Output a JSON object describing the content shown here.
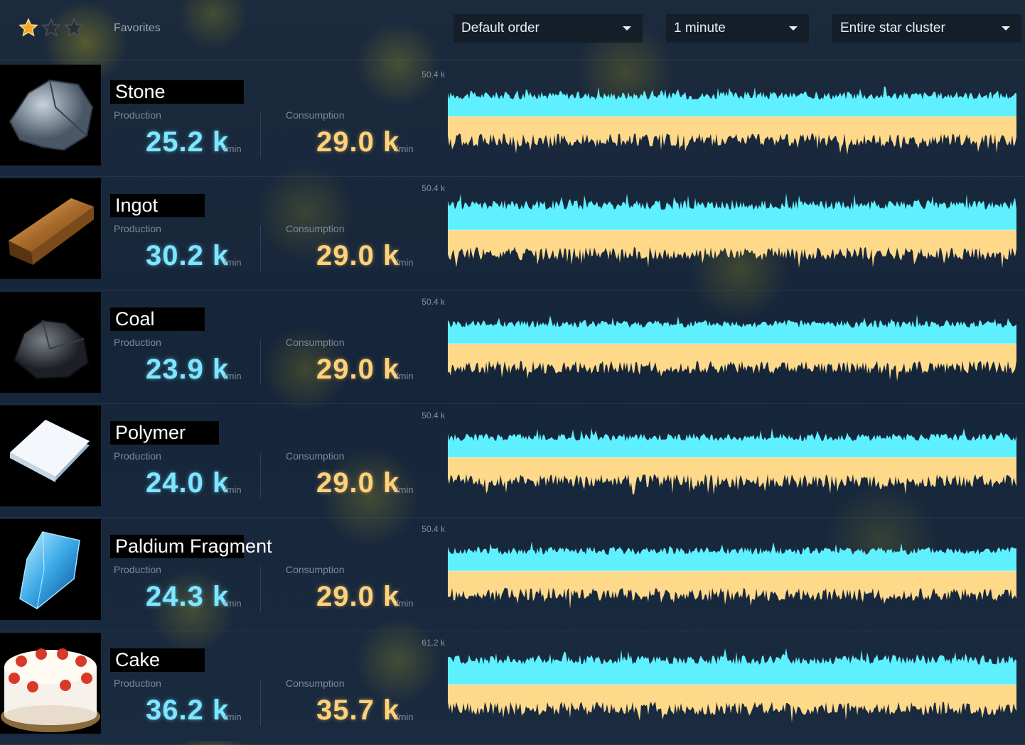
{
  "header": {
    "favorites_label": "Favorites",
    "stars": [
      {
        "icon": "star-filled-icon",
        "active": true
      },
      {
        "icon": "star-empty-icon",
        "active": false
      },
      {
        "icon": "star-empty-icon",
        "active": false
      }
    ],
    "sort_select": {
      "value": "Default order"
    },
    "time_select": {
      "value": "1 minute"
    },
    "scope_select": {
      "value": "Entire star cluster"
    }
  },
  "labels": {
    "production": "Production",
    "consumption": "Consumption",
    "unit": "/min"
  },
  "colors": {
    "production": "#5ff0ff",
    "consumption": "#ffd98a",
    "accent_star": "#f5a623"
  },
  "items": [
    {
      "name": "Stone",
      "icon": "stone-icon",
      "production": "25.2 k",
      "consumption": "29.0 k",
      "y_max": "50.4 k",
      "chart_data": {
        "type": "area",
        "ylim": [
          0,
          50.4
        ],
        "unit": "k",
        "production_level": 25.2,
        "consumption_level": 29.0
      }
    },
    {
      "name": "Ingot",
      "icon": "ingot-icon",
      "production": "30.2 k",
      "consumption": "29.0 k",
      "y_max": "50.4 k",
      "chart_data": {
        "type": "area",
        "ylim": [
          0,
          50.4
        ],
        "unit": "k",
        "production_level": 30.2,
        "consumption_level": 29.0
      }
    },
    {
      "name": "Coal",
      "icon": "coal-icon",
      "production": "23.9 k",
      "consumption": "29.0 k",
      "y_max": "50.4 k",
      "chart_data": {
        "type": "area",
        "ylim": [
          0,
          50.4
        ],
        "unit": "k",
        "production_level": 23.9,
        "consumption_level": 29.0
      }
    },
    {
      "name": "Polymer",
      "icon": "polymer-icon",
      "production": "24.0 k",
      "consumption": "29.0 k",
      "y_max": "50.4 k",
      "chart_data": {
        "type": "area",
        "ylim": [
          0,
          50.4
        ],
        "unit": "k",
        "production_level": 24.0,
        "consumption_level": 29.0
      }
    },
    {
      "name": "Paldium Fragment",
      "icon": "paldium-fragment-icon",
      "production": "24.3 k",
      "consumption": "29.0 k",
      "y_max": "50.4 k",
      "chart_data": {
        "type": "area",
        "ylim": [
          0,
          50.4
        ],
        "unit": "k",
        "production_level": 24.3,
        "consumption_level": 29.0
      }
    },
    {
      "name": "Cake",
      "icon": "cake-icon",
      "production": "36.2 k",
      "consumption": "35.7 k",
      "y_max": "61.2 k",
      "chart_data": {
        "type": "area",
        "ylim": [
          0,
          61.2
        ],
        "unit": "k",
        "production_level": 36.2,
        "consumption_level": 35.7
      }
    }
  ]
}
